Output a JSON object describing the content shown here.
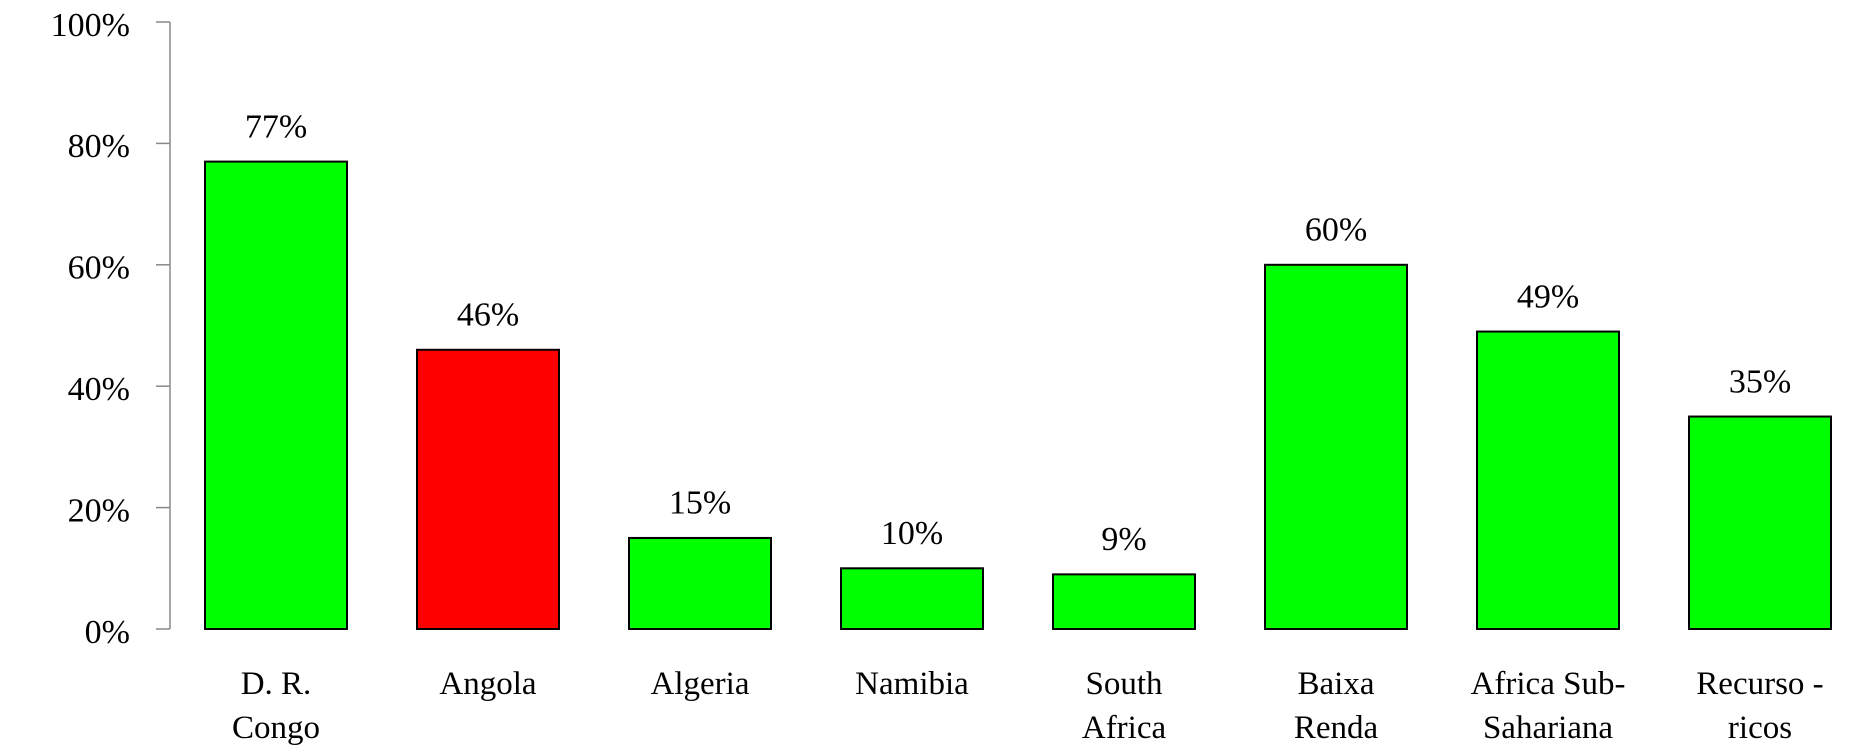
{
  "chart_data": {
    "type": "bar",
    "categories": [
      "D. R.\nCongo",
      "Angola",
      "Algeria",
      "Namibia",
      "South\nAfrica",
      "Baixa\nRenda",
      "Africa Sub-\nSahariana",
      "Recurso -\nricos"
    ],
    "values": [
      77,
      46,
      15,
      10,
      9,
      60,
      49,
      35
    ],
    "value_labels": [
      "77%",
      "46%",
      "15%",
      "10%",
      "9%",
      "60%",
      "49%",
      "35%"
    ],
    "colors": [
      "#00ff00",
      "#ff0000",
      "#00ff00",
      "#00ff00",
      "#00ff00",
      "#00ff00",
      "#00ff00",
      "#00ff00"
    ],
    "ylim": [
      0,
      100
    ],
    "yticks": [
      {
        "value": 0,
        "label": "0%"
      },
      {
        "value": 20,
        "label": "20%"
      },
      {
        "value": 40,
        "label": "40%"
      },
      {
        "value": 60,
        "label": "60%"
      },
      {
        "value": 80,
        "label": "80%"
      },
      {
        "value": 100,
        "label": "100%"
      }
    ],
    "grid": false
  }
}
